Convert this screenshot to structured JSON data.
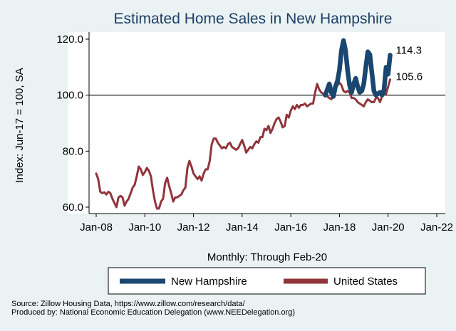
{
  "chart_data": {
    "type": "line",
    "title": "Estimated Home Sales in New Hampshire",
    "ylabel": "Index: Jun-17 = 100, SA",
    "xlabel": "Monthly: Through Feb-20",
    "ylim": [
      55,
      123
    ],
    "xlim": [
      2007.5,
      2022.3
    ],
    "yticks": [
      60,
      80,
      100,
      120
    ],
    "ytick_labels": [
      "60.0",
      "80.0",
      "100.0",
      "120.0"
    ],
    "xticks": [
      2008,
      2010,
      2012,
      2014,
      2016,
      2018,
      2020,
      2022
    ],
    "xtick_labels": [
      "Jan-08",
      "Jan-10",
      "Jan-12",
      "Jan-14",
      "Jan-16",
      "Jan-18",
      "Jan-20",
      "Jan-22"
    ],
    "reference_line": 100,
    "series": [
      {
        "name": "New Hampshire",
        "color": "#1a476f",
        "end_label": "114.3",
        "points": [
          [
            2017.417,
            100.0
          ],
          [
            2017.5,
            102.0
          ],
          [
            2017.583,
            104.0
          ],
          [
            2017.667,
            101.0
          ],
          [
            2017.75,
            99.5
          ],
          [
            2017.833,
            103.0
          ],
          [
            2017.917,
            105.0
          ],
          [
            2018.0,
            109.0
          ],
          [
            2018.083,
            116.0
          ],
          [
            2018.167,
            119.5
          ],
          [
            2018.25,
            116.0
          ],
          [
            2018.333,
            109.0
          ],
          [
            2018.417,
            103.5
          ],
          [
            2018.5,
            101.0
          ],
          [
            2018.583,
            104.0
          ],
          [
            2018.667,
            106.0
          ],
          [
            2018.75,
            103.0
          ],
          [
            2018.833,
            101.0
          ],
          [
            2018.917,
            101.5
          ],
          [
            2019.0,
            104.0
          ],
          [
            2019.083,
            110.0
          ],
          [
            2019.167,
            115.5
          ],
          [
            2019.25,
            114.5
          ],
          [
            2019.333,
            108.0
          ],
          [
            2019.417,
            101.5
          ],
          [
            2019.5,
            100.0
          ],
          [
            2019.583,
            100.5
          ],
          [
            2019.667,
            101.0
          ],
          [
            2019.75,
            100.0
          ],
          [
            2019.833,
            102.0
          ],
          [
            2019.917,
            110.0
          ],
          [
            2020.0,
            107.5
          ],
          [
            2020.083,
            114.3
          ]
        ]
      },
      {
        "name": "United States",
        "color": "#90353b",
        "end_label": "105.6",
        "points": [
          [
            2008.0,
            72.0
          ],
          [
            2008.083,
            70.0
          ],
          [
            2008.167,
            65.5
          ],
          [
            2008.25,
            65.0
          ],
          [
            2008.333,
            65.3
          ],
          [
            2008.417,
            64.5
          ],
          [
            2008.5,
            65.5
          ],
          [
            2008.583,
            65.0
          ],
          [
            2008.667,
            63.0
          ],
          [
            2008.75,
            61.5
          ],
          [
            2008.833,
            60.0
          ],
          [
            2008.917,
            63.5
          ],
          [
            2009.0,
            64.0
          ],
          [
            2009.083,
            63.5
          ],
          [
            2009.167,
            60.5
          ],
          [
            2009.25,
            62.0
          ],
          [
            2009.333,
            63.0
          ],
          [
            2009.417,
            65.0
          ],
          [
            2009.5,
            67.0
          ],
          [
            2009.583,
            68.0
          ],
          [
            2009.667,
            71.0
          ],
          [
            2009.75,
            74.5
          ],
          [
            2009.833,
            73.5
          ],
          [
            2009.917,
            71.5
          ],
          [
            2010.0,
            72.5
          ],
          [
            2010.083,
            74.0
          ],
          [
            2010.167,
            73.0
          ],
          [
            2010.25,
            71.0
          ],
          [
            2010.333,
            66.0
          ],
          [
            2010.417,
            62.0
          ],
          [
            2010.5,
            59.5
          ],
          [
            2010.583,
            59.5
          ],
          [
            2010.667,
            62.0
          ],
          [
            2010.75,
            63.0
          ],
          [
            2010.833,
            68.5
          ],
          [
            2010.917,
            70.5
          ],
          [
            2011.0,
            67.5
          ],
          [
            2011.083,
            65.0
          ],
          [
            2011.167,
            62.0
          ],
          [
            2011.25,
            63.5
          ],
          [
            2011.333,
            63.5
          ],
          [
            2011.417,
            64.0
          ],
          [
            2011.5,
            64.5
          ],
          [
            2011.583,
            66.0
          ],
          [
            2011.667,
            67.0
          ],
          [
            2011.75,
            74.0
          ],
          [
            2011.833,
            76.5
          ],
          [
            2011.917,
            74.5
          ],
          [
            2012.0,
            72.0
          ],
          [
            2012.083,
            71.0
          ],
          [
            2012.167,
            70.0
          ],
          [
            2012.25,
            71.0
          ],
          [
            2012.333,
            69.5
          ],
          [
            2012.417,
            72.0
          ],
          [
            2012.5,
            73.5
          ],
          [
            2012.583,
            73.5
          ],
          [
            2012.667,
            76.5
          ],
          [
            2012.75,
            82.5
          ],
          [
            2012.833,
            84.5
          ],
          [
            2012.917,
            84.5
          ],
          [
            2013.0,
            83.0
          ],
          [
            2013.083,
            82.0
          ],
          [
            2013.167,
            81.0
          ],
          [
            2013.25,
            81.5
          ],
          [
            2013.333,
            81.0
          ],
          [
            2013.417,
            82.5
          ],
          [
            2013.5,
            83.0
          ],
          [
            2013.583,
            81.5
          ],
          [
            2013.667,
            81.0
          ],
          [
            2013.75,
            80.5
          ],
          [
            2013.833,
            81.0
          ],
          [
            2013.917,
            82.5
          ],
          [
            2014.0,
            84.0
          ],
          [
            2014.083,
            82.0
          ],
          [
            2014.167,
            79.5
          ],
          [
            2014.25,
            80.5
          ],
          [
            2014.333,
            81.5
          ],
          [
            2014.417,
            81.0
          ],
          [
            2014.5,
            82.5
          ],
          [
            2014.583,
            83.5
          ],
          [
            2014.667,
            83.0
          ],
          [
            2014.75,
            85.0
          ],
          [
            2014.833,
            85.0
          ],
          [
            2014.917,
            88.0
          ],
          [
            2015.0,
            87.5
          ],
          [
            2015.083,
            89.0
          ],
          [
            2015.167,
            86.5
          ],
          [
            2015.25,
            88.0
          ],
          [
            2015.333,
            90.0
          ],
          [
            2015.417,
            91.5
          ],
          [
            2015.5,
            92.0
          ],
          [
            2015.583,
            90.5
          ],
          [
            2015.667,
            88.5
          ],
          [
            2015.75,
            89.0
          ],
          [
            2015.833,
            93.0
          ],
          [
            2015.917,
            92.0
          ],
          [
            2016.0,
            94.5
          ],
          [
            2016.083,
            96.0
          ],
          [
            2016.167,
            95.0
          ],
          [
            2016.25,
            96.5
          ],
          [
            2016.333,
            95.5
          ],
          [
            2016.417,
            96.5
          ],
          [
            2016.5,
            96.5
          ],
          [
            2016.583,
            97.0
          ],
          [
            2016.667,
            96.0
          ],
          [
            2016.75,
            96.5
          ],
          [
            2016.833,
            97.0
          ],
          [
            2016.917,
            97.0
          ],
          [
            2017.0,
            101.0
          ],
          [
            2017.083,
            104.0
          ],
          [
            2017.167,
            102.0
          ],
          [
            2017.25,
            101.0
          ],
          [
            2017.333,
            100.5
          ],
          [
            2017.417,
            100.0
          ],
          [
            2017.5,
            99.5
          ],
          [
            2017.583,
            99.0
          ],
          [
            2017.667,
            98.5
          ],
          [
            2017.75,
            101.0
          ],
          [
            2017.833,
            102.5
          ],
          [
            2017.917,
            103.5
          ],
          [
            2018.0,
            104.5
          ],
          [
            2018.083,
            103.5
          ],
          [
            2018.167,
            101.5
          ],
          [
            2018.25,
            101.0
          ],
          [
            2018.333,
            101.5
          ],
          [
            2018.417,
            101.0
          ],
          [
            2018.5,
            99.0
          ],
          [
            2018.583,
            99.0
          ],
          [
            2018.667,
            98.5
          ],
          [
            2018.75,
            97.5
          ],
          [
            2018.833,
            97.0
          ],
          [
            2018.917,
            96.5
          ],
          [
            2019.0,
            96.0
          ],
          [
            2019.083,
            97.5
          ],
          [
            2019.167,
            98.5
          ],
          [
            2019.25,
            98.0
          ],
          [
            2019.333,
            97.5
          ],
          [
            2019.417,
            97.5
          ],
          [
            2019.5,
            99.0
          ],
          [
            2019.583,
            99.0
          ],
          [
            2019.667,
            97.5
          ],
          [
            2019.75,
            99.5
          ],
          [
            2019.833,
            100.5
          ],
          [
            2019.917,
            100.5
          ],
          [
            2020.0,
            103.0
          ],
          [
            2020.083,
            105.6
          ]
        ]
      }
    ]
  },
  "legend": {
    "items": [
      "New Hampshire",
      "United States"
    ]
  },
  "notes": {
    "source": "Source: Zillow Housing Data, https://www.zillow.com/research/data/",
    "produced_by": "Produced by: National Economic Education Delegation (www.NEEDelegation.org)"
  }
}
